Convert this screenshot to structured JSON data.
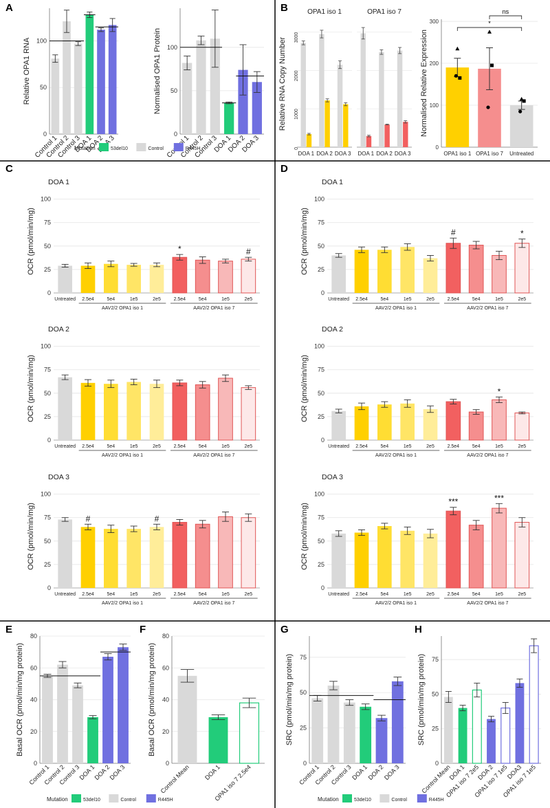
{
  "colors": {
    "control": "#d9d9d9",
    "m53del10": "#22cc7a",
    "r445h": "#7070e0",
    "iso1": [
      "#ffd000",
      "#ffdd33",
      "#ffe566",
      "#ffed99"
    ],
    "iso7": [
      "#f26060",
      "#f58e8e",
      "#f8b8b8",
      "#fde8e8"
    ],
    "iso7_edge": "#e05555",
    "open_green_edge": "#22cc7a",
    "open_purple_edge": "#7070e0"
  },
  "panels": {
    "A": "A",
    "B": "B",
    "C": "C",
    "D": "D",
    "E": "E",
    "F": "F",
    "G": "G",
    "H": "H"
  },
  "legend": {
    "title": "Mutation",
    "items": [
      "53del10",
      "Control",
      "R445H"
    ]
  },
  "ocr_common": {
    "ylabel": "OCR (pmol/min/mg)",
    "categories": [
      "Untreated",
      "2.5e4",
      "5e4",
      "1e5",
      "2e5",
      "2.5e4",
      "5e4",
      "1e5",
      "2e5"
    ],
    "group1": "AAV2/2 OPA1 iso 1",
    "group7": "AAV2/2 OPA1 iso 7",
    "yticks": [
      0,
      25,
      50,
      75,
      100
    ],
    "ylim": [
      0,
      110
    ]
  },
  "chart_data": [
    {
      "id": "A1",
      "type": "bar",
      "ylabel": "Relative OPA1 RNA",
      "ylim": [
        0,
        135
      ],
      "yticks": [
        0,
        50,
        100
      ],
      "categories": [
        "Control 1",
        "Control 2",
        "Control 3",
        "DOA 1",
        "DOA 2",
        "DOA 3"
      ],
      "values": [
        81,
        121,
        97,
        128,
        112,
        117
      ],
      "errors": [
        4,
        12,
        2,
        3,
        2,
        7
      ],
      "groups": [
        "control",
        "control",
        "control",
        "53del10",
        "r445h",
        "r445h"
      ],
      "ref_lines": [
        {
          "from": 0,
          "to": 2,
          "value": 100
        },
        {
          "from": 3,
          "to": 3,
          "value": 128
        },
        {
          "from": 4,
          "to": 5,
          "value": 115
        }
      ]
    },
    {
      "id": "A2",
      "type": "bar",
      "ylabel": "Normalised OPA1 Protein",
      "ylim": [
        0,
        145
      ],
      "yticks": [
        0,
        50,
        100
      ],
      "categories": [
        "Control 1",
        "Control 2",
        "Control 3",
        "DOA 1",
        "DOA 2",
        "DOA 3"
      ],
      "values": [
        82,
        108,
        110,
        36,
        74,
        60
      ],
      "errors": [
        8,
        5,
        33,
        1,
        29,
        12
      ],
      "groups": [
        "control",
        "control",
        "control",
        "53del10",
        "r445h",
        "r445h"
      ],
      "ref_lines": [
        {
          "from": 0,
          "to": 2,
          "value": 100
        },
        {
          "from": 3,
          "to": 3,
          "value": 36
        },
        {
          "from": 4,
          "to": 5,
          "value": 67
        }
      ]
    },
    {
      "id": "B1",
      "type": "bar",
      "ylabel": "Relative RNA Copy Number",
      "ylim": [
        0,
        3300
      ],
      "yticks": [
        0,
        1000,
        2000,
        3000
      ],
      "facets": [
        "OPA1 iso 1",
        "OPA1 iso 7"
      ],
      "categories": [
        "DOA 1",
        "DOA 2",
        "DOA 3"
      ],
      "series": [
        {
          "name": "OPA1 iso 1",
          "total": [
            2720,
            2950,
            2150
          ],
          "total_err": [
            50,
            100,
            100
          ],
          "transgene": [
            340,
            1220,
            1120
          ],
          "transgene_err": [
            20,
            40,
            40
          ]
        },
        {
          "name": "OPA1 iso 7",
          "total": [
            2970,
            2480,
            2520
          ],
          "total_err": [
            150,
            60,
            80
          ],
          "transgene": [
            290,
            590,
            660
          ],
          "transgene_err": [
            20,
            10,
            30
          ]
        }
      ]
    },
    {
      "id": "B2",
      "type": "bar",
      "ylabel": "Normalised Relative Expression",
      "ylim": [
        0,
        305
      ],
      "yticks": [
        0,
        100,
        200,
        300
      ],
      "categories": [
        "OPA1 iso 1",
        "OPA1 iso 7",
        "Untreated"
      ],
      "values": [
        190,
        187,
        100
      ],
      "errors": [
        22,
        50,
        10
      ],
      "points": [
        [
          235,
          165,
          170
        ],
        [
          275,
          195,
          95
        ],
        [
          115,
          110,
          85
        ]
      ],
      "significance": [
        {
          "label": "*",
          "from": 0,
          "to": 2
        },
        {
          "label": "ns",
          "from": 1,
          "to": 2
        }
      ]
    },
    {
      "id": "C1",
      "type": "bar",
      "title": "DOA 1",
      "base": "control",
      "values": [
        29,
        29,
        31,
        30,
        30,
        38,
        35,
        34,
        36
      ],
      "errors": [
        1.5,
        3,
        3,
        1.5,
        2,
        3,
        3.5,
        2,
        2
      ],
      "marks": [
        "",
        "",
        "",
        "",
        "",
        "*",
        "",
        "",
        "#"
      ]
    },
    {
      "id": "C2",
      "type": "bar",
      "title": "DOA 2",
      "base": "control",
      "values": [
        67,
        61,
        60,
        62,
        60,
        61,
        59,
        66,
        56
      ],
      "errors": [
        2.5,
        3.5,
        4,
        3,
        4,
        3,
        3.5,
        3.5,
        2
      ],
      "marks": [
        "",
        "",
        "",
        "",
        "",
        "",
        "",
        "",
        ""
      ]
    },
    {
      "id": "C3",
      "type": "bar",
      "title": "DOA 3",
      "base": "control",
      "values": [
        73,
        65,
        63,
        63,
        65,
        70,
        68,
        76,
        75
      ],
      "errors": [
        2,
        3,
        4,
        3,
        3,
        3,
        4,
        5,
        4
      ],
      "marks": [
        "",
        "#",
        "",
        "",
        "#",
        "",
        "",
        "",
        ""
      ]
    },
    {
      "id": "D1",
      "type": "bar",
      "title": "DOA 1",
      "base": "control",
      "values": [
        40,
        46,
        46,
        49,
        37,
        53,
        51,
        40,
        53
      ],
      "errors": [
        2,
        3,
        3,
        3.5,
        3,
        5.5,
        4,
        4.5,
        4.5
      ],
      "marks": [
        "",
        "",
        "",
        "",
        "",
        "#",
        "",
        "",
        "*"
      ]
    },
    {
      "id": "D2",
      "type": "bar",
      "title": "DOA 2",
      "base": "control",
      "values": [
        31,
        36,
        38,
        39,
        33,
        41,
        30,
        43,
        29
      ],
      "errors": [
        2,
        3.5,
        3,
        4,
        3.5,
        2.5,
        2.5,
        3,
        1
      ],
      "marks": [
        "",
        "",
        "",
        "",
        "",
        "",
        "",
        "*",
        ""
      ]
    },
    {
      "id": "D3",
      "type": "bar",
      "title": "DOA 3",
      "base": "control",
      "values": [
        58,
        59,
        66,
        61,
        58,
        82,
        67,
        85,
        70
      ],
      "errors": [
        3,
        3,
        3,
        4,
        4.5,
        4,
        5,
        5,
        5
      ],
      "marks": [
        "",
        "",
        "",
        "",
        "",
        "***",
        "",
        "***",
        ""
      ]
    },
    {
      "id": "E",
      "type": "bar",
      "ylabel": "Basal OCR (pmol/min/mg protein)",
      "ylim": [
        0,
        80
      ],
      "yticks": [
        0,
        20,
        40,
        60,
        80
      ],
      "categories": [
        "Control 1",
        "Control 2",
        "Control 3",
        "DOA 1",
        "DOA 2",
        "DOA 3"
      ],
      "values": [
        55,
        62,
        49,
        29,
        67,
        73
      ],
      "errors": [
        1,
        2,
        1.5,
        1,
        2,
        2
      ],
      "groups": [
        "control",
        "control",
        "control",
        "53del10",
        "r445h",
        "r445h"
      ],
      "ref_lines": [
        {
          "from": 0,
          "to": 3,
          "value": 55
        },
        {
          "from": 4,
          "to": 5,
          "value": 70
        }
      ]
    },
    {
      "id": "F",
      "type": "bar",
      "ylabel": "Basal OCR (pmol/min/mg protein)",
      "ylim": [
        0,
        80
      ],
      "yticks": [
        0,
        20,
        40,
        60,
        80
      ],
      "categories": [
        "Control Mean",
        "DOA 1",
        "OPA1 iso 7 2.5e4"
      ],
      "values": [
        55,
        29,
        38
      ],
      "errors": [
        4,
        1.5,
        3
      ],
      "groups": [
        "control",
        "53del10",
        "open_green"
      ]
    },
    {
      "id": "G",
      "type": "bar",
      "ylabel": "SRC (pmol/min/mg protein)",
      "ylim": [
        0,
        90
      ],
      "yticks": [
        0,
        25,
        50,
        75
      ],
      "categories": [
        "Control 1",
        "Control 2",
        "Control 3",
        "DOA 1",
        "DOA 2",
        "DOA 3"
      ],
      "values": [
        46,
        55,
        43,
        40,
        32,
        58
      ],
      "errors": [
        2,
        3,
        2,
        2,
        2,
        3
      ],
      "groups": [
        "control",
        "control",
        "control",
        "53del10",
        "r445h",
        "r445h"
      ],
      "ref_lines": [
        {
          "from": 0,
          "to": 3,
          "value": 48
        },
        {
          "from": 4,
          "to": 5,
          "value": 45
        }
      ]
    },
    {
      "id": "H",
      "type": "bar",
      "ylabel": "SRC (pmol/min/mg protein)",
      "ylim": [
        0,
        92
      ],
      "yticks": [
        0,
        25,
        50,
        75
      ],
      "categories": [
        "Control Mean",
        "DOA 1",
        "OPA1 iso 7 2e5",
        "DOA 2",
        "OPA1 iso 7 1e5",
        "DOA3",
        "OPA1 iso 7 1e5"
      ],
      "values": [
        48,
        40,
        53,
        32,
        40,
        58,
        85
      ],
      "errors": [
        4,
        2,
        5,
        2,
        4,
        3,
        5
      ],
      "groups": [
        "control",
        "53del10",
        "open_green",
        "r445h",
        "open_purple",
        "r445h",
        "open_purple"
      ]
    }
  ]
}
